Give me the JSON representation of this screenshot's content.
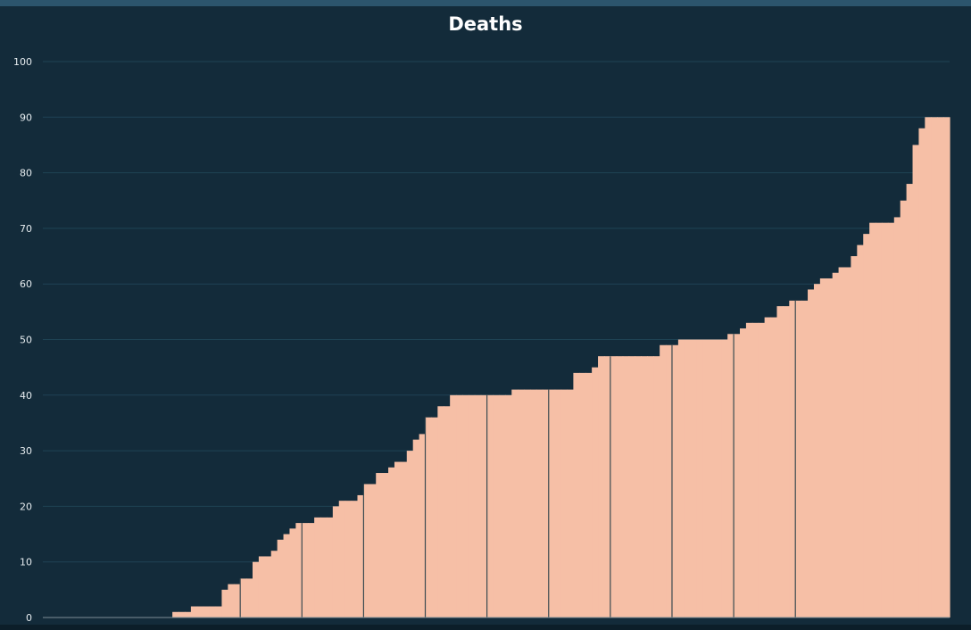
{
  "chart_data": {
    "type": "bar",
    "title": "Deaths",
    "xlabel": "",
    "ylabel": "",
    "ylim": [
      0,
      100
    ],
    "yticks": [
      0,
      10,
      20,
      30,
      40,
      50,
      60,
      70,
      80,
      90,
      100
    ],
    "grid": true,
    "bar_color": "#f6bfa6",
    "background": "#132b3a",
    "gridline_color": "#1f4354",
    "values": [
      0,
      0,
      0,
      0,
      0,
      0,
      0,
      0,
      0,
      0,
      0,
      0,
      0,
      0,
      0,
      0,
      0,
      0,
      0,
      0,
      0,
      1,
      1,
      1,
      2,
      2,
      2,
      2,
      2,
      5,
      6,
      6,
      7,
      7,
      10,
      11,
      11,
      12,
      14,
      15,
      16,
      17,
      17,
      17,
      18,
      18,
      18,
      20,
      21,
      21,
      21,
      22,
      24,
      24,
      26,
      26,
      27,
      28,
      28,
      30,
      32,
      33,
      36,
      36,
      38,
      38,
      40,
      40,
      40,
      40,
      40,
      40,
      40,
      40,
      40,
      40,
      41,
      41,
      41,
      41,
      41,
      41,
      41,
      41,
      41,
      41,
      44,
      44,
      44,
      45,
      47,
      47,
      47,
      47,
      47,
      47,
      47,
      47,
      47,
      47,
      49,
      49,
      49,
      50,
      50,
      50,
      50,
      50,
      50,
      50,
      50,
      51,
      51,
      52,
      53,
      53,
      53,
      54,
      54,
      56,
      56,
      57,
      57,
      57,
      59,
      60,
      61,
      61,
      62,
      63,
      63,
      65,
      67,
      69,
      71,
      71,
      71,
      71,
      72,
      75,
      78,
      85,
      88,
      90,
      90,
      90,
      90
    ],
    "separators": [
      32,
      42,
      52,
      62,
      72,
      82,
      92,
      102,
      112,
      122
    ]
  }
}
